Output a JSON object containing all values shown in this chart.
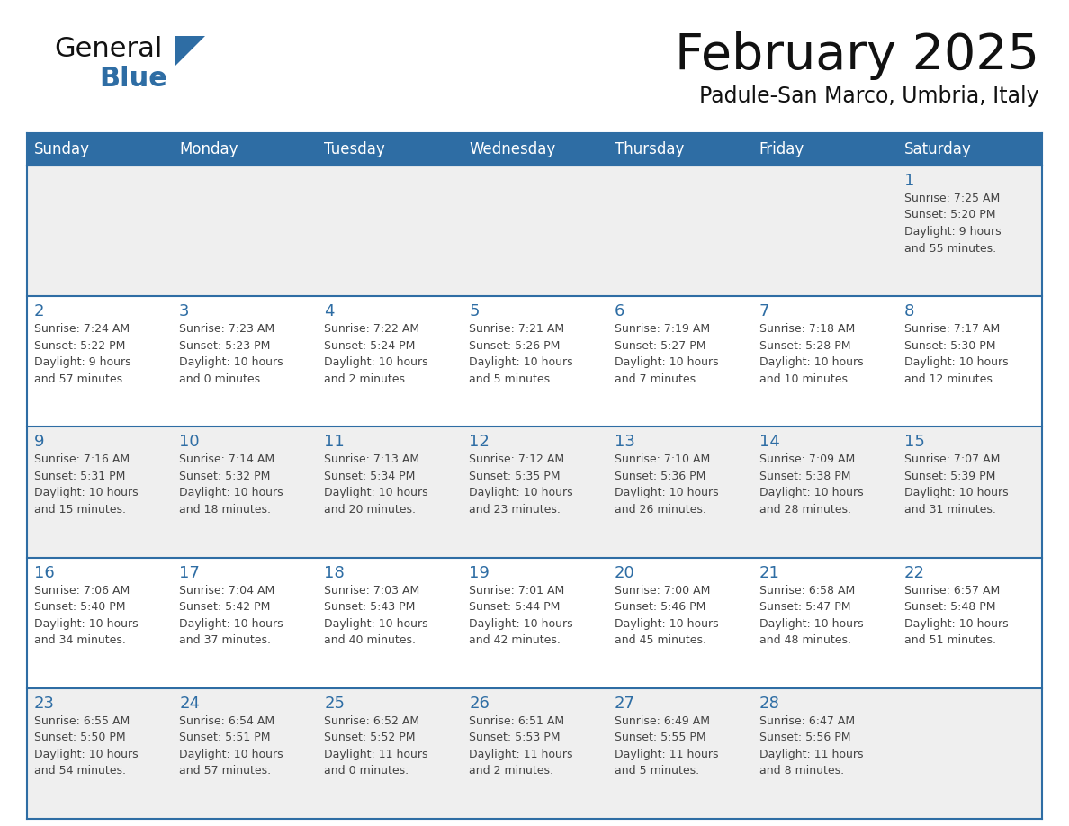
{
  "title": "February 2025",
  "subtitle": "Padule-San Marco, Umbria, Italy",
  "header_bg": "#2E6DA4",
  "header_text": "#FFFFFF",
  "cell_bg_light": "#EFEFEF",
  "cell_bg_white": "#FFFFFF",
  "border_color": "#2E6DA4",
  "day_number_color": "#2E6DA4",
  "cell_text_color": "#444444",
  "days_of_week": [
    "Sunday",
    "Monday",
    "Tuesday",
    "Wednesday",
    "Thursday",
    "Friday",
    "Saturday"
  ],
  "weeks": [
    [
      {
        "day": null,
        "info": null
      },
      {
        "day": null,
        "info": null
      },
      {
        "day": null,
        "info": null
      },
      {
        "day": null,
        "info": null
      },
      {
        "day": null,
        "info": null
      },
      {
        "day": null,
        "info": null
      },
      {
        "day": 1,
        "info": "Sunrise: 7:25 AM\nSunset: 5:20 PM\nDaylight: 9 hours\nand 55 minutes."
      }
    ],
    [
      {
        "day": 2,
        "info": "Sunrise: 7:24 AM\nSunset: 5:22 PM\nDaylight: 9 hours\nand 57 minutes."
      },
      {
        "day": 3,
        "info": "Sunrise: 7:23 AM\nSunset: 5:23 PM\nDaylight: 10 hours\nand 0 minutes."
      },
      {
        "day": 4,
        "info": "Sunrise: 7:22 AM\nSunset: 5:24 PM\nDaylight: 10 hours\nand 2 minutes."
      },
      {
        "day": 5,
        "info": "Sunrise: 7:21 AM\nSunset: 5:26 PM\nDaylight: 10 hours\nand 5 minutes."
      },
      {
        "day": 6,
        "info": "Sunrise: 7:19 AM\nSunset: 5:27 PM\nDaylight: 10 hours\nand 7 minutes."
      },
      {
        "day": 7,
        "info": "Sunrise: 7:18 AM\nSunset: 5:28 PM\nDaylight: 10 hours\nand 10 minutes."
      },
      {
        "day": 8,
        "info": "Sunrise: 7:17 AM\nSunset: 5:30 PM\nDaylight: 10 hours\nand 12 minutes."
      }
    ],
    [
      {
        "day": 9,
        "info": "Sunrise: 7:16 AM\nSunset: 5:31 PM\nDaylight: 10 hours\nand 15 minutes."
      },
      {
        "day": 10,
        "info": "Sunrise: 7:14 AM\nSunset: 5:32 PM\nDaylight: 10 hours\nand 18 minutes."
      },
      {
        "day": 11,
        "info": "Sunrise: 7:13 AM\nSunset: 5:34 PM\nDaylight: 10 hours\nand 20 minutes."
      },
      {
        "day": 12,
        "info": "Sunrise: 7:12 AM\nSunset: 5:35 PM\nDaylight: 10 hours\nand 23 minutes."
      },
      {
        "day": 13,
        "info": "Sunrise: 7:10 AM\nSunset: 5:36 PM\nDaylight: 10 hours\nand 26 minutes."
      },
      {
        "day": 14,
        "info": "Sunrise: 7:09 AM\nSunset: 5:38 PM\nDaylight: 10 hours\nand 28 minutes."
      },
      {
        "day": 15,
        "info": "Sunrise: 7:07 AM\nSunset: 5:39 PM\nDaylight: 10 hours\nand 31 minutes."
      }
    ],
    [
      {
        "day": 16,
        "info": "Sunrise: 7:06 AM\nSunset: 5:40 PM\nDaylight: 10 hours\nand 34 minutes."
      },
      {
        "day": 17,
        "info": "Sunrise: 7:04 AM\nSunset: 5:42 PM\nDaylight: 10 hours\nand 37 minutes."
      },
      {
        "day": 18,
        "info": "Sunrise: 7:03 AM\nSunset: 5:43 PM\nDaylight: 10 hours\nand 40 minutes."
      },
      {
        "day": 19,
        "info": "Sunrise: 7:01 AM\nSunset: 5:44 PM\nDaylight: 10 hours\nand 42 minutes."
      },
      {
        "day": 20,
        "info": "Sunrise: 7:00 AM\nSunset: 5:46 PM\nDaylight: 10 hours\nand 45 minutes."
      },
      {
        "day": 21,
        "info": "Sunrise: 6:58 AM\nSunset: 5:47 PM\nDaylight: 10 hours\nand 48 minutes."
      },
      {
        "day": 22,
        "info": "Sunrise: 6:57 AM\nSunset: 5:48 PM\nDaylight: 10 hours\nand 51 minutes."
      }
    ],
    [
      {
        "day": 23,
        "info": "Sunrise: 6:55 AM\nSunset: 5:50 PM\nDaylight: 10 hours\nand 54 minutes."
      },
      {
        "day": 24,
        "info": "Sunrise: 6:54 AM\nSunset: 5:51 PM\nDaylight: 10 hours\nand 57 minutes."
      },
      {
        "day": 25,
        "info": "Sunrise: 6:52 AM\nSunset: 5:52 PM\nDaylight: 11 hours\nand 0 minutes."
      },
      {
        "day": 26,
        "info": "Sunrise: 6:51 AM\nSunset: 5:53 PM\nDaylight: 11 hours\nand 2 minutes."
      },
      {
        "day": 27,
        "info": "Sunrise: 6:49 AM\nSunset: 5:55 PM\nDaylight: 11 hours\nand 5 minutes."
      },
      {
        "day": 28,
        "info": "Sunrise: 6:47 AM\nSunset: 5:56 PM\nDaylight: 11 hours\nand 8 minutes."
      },
      {
        "day": null,
        "info": null
      }
    ]
  ],
  "logo_general_color": "#111111",
  "logo_blue_color": "#2E6DA4",
  "logo_triangle_color": "#2E6DA4",
  "title_fontsize": 40,
  "subtitle_fontsize": 17,
  "header_fontsize": 12,
  "day_num_fontsize": 13,
  "cell_fontsize": 9
}
